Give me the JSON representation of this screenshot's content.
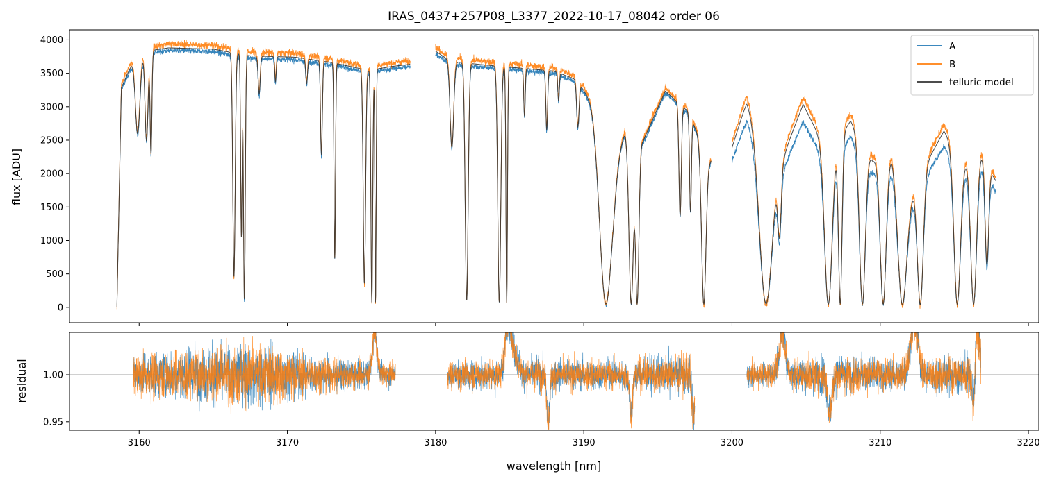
{
  "chart_data": [
    {
      "type": "line",
      "title": "IRAS_0437+257P08_L3377_2022-10-17_08042  order 06",
      "xlabel": "",
      "ylabel": "flux [ADU]",
      "xlim": [
        3155.3,
        3220.7
      ],
      "ylim": [
        -230,
        4150
      ],
      "x_ticks": [
        3160,
        3170,
        3180,
        3190,
        3200,
        3210,
        3220
      ],
      "y_ticks": [
        0,
        500,
        1000,
        1500,
        2000,
        2500,
        3000,
        3500,
        4000
      ],
      "y_tick_labels": [
        "0",
        "500",
        "1000",
        "1500",
        "2000",
        "2500",
        "3000",
        "3500",
        "4000"
      ],
      "legend": {
        "position": "top-right",
        "entries": [
          "A",
          "B",
          "telluric model"
        ]
      },
      "series": [
        {
          "name": "A",
          "color": "#1f77b4",
          "segments": [
            [
              3158.5,
              3178.3
            ],
            [
              3180.0,
              3198.6
            ],
            [
              3200.0,
              3217.8
            ]
          ]
        },
        {
          "name": "B",
          "color": "#ff7f0e",
          "segments": [
            [
              3158.5,
              3178.3
            ],
            [
              3180.0,
              3198.6
            ],
            [
              3200.0,
              3217.8
            ]
          ]
        },
        {
          "name": "telluric model",
          "color": "#333333",
          "segments": [
            [
              3158.5,
              3178.3
            ],
            [
              3180.0,
              3198.6
            ],
            [
              3200.0,
              3217.8
            ]
          ]
        }
      ],
      "continuum_knots": [
        [
          3158.5,
          0
        ],
        [
          3158.8,
          3300
        ],
        [
          3159.5,
          3650
        ],
        [
          3160.5,
          3850
        ],
        [
          3162.0,
          3900
        ],
        [
          3165.0,
          3880
        ],
        [
          3167.5,
          3780
        ],
        [
          3170.5,
          3760
        ],
        [
          3173.0,
          3680
        ],
        [
          3175.5,
          3560
        ],
        [
          3177.0,
          3620
        ],
        [
          3178.2,
          3650
        ],
        [
          3180.0,
          3850
        ],
        [
          3181.0,
          3700
        ],
        [
          3183.0,
          3650
        ],
        [
          3185.5,
          3600
        ],
        [
          3188.0,
          3550
        ],
        [
          3189.5,
          3420
        ],
        [
          3190.5,
          3100
        ],
        [
          3192.0,
          2200
        ],
        [
          3192.8,
          2650
        ],
        [
          3194.0,
          2500
        ],
        [
          3195.5,
          3250
        ],
        [
          3197.0,
          2950
        ],
        [
          3198.5,
          2200
        ],
        [
          3200.0,
          2400
        ],
        [
          3201.0,
          3100
        ],
        [
          3202.0,
          2800
        ],
        [
          3203.5,
          2300
        ],
        [
          3204.8,
          3050
        ],
        [
          3206.5,
          2300
        ],
        [
          3208.0,
          2800
        ],
        [
          3209.5,
          2200
        ],
        [
          3210.8,
          2300
        ],
        [
          3212.0,
          1700
        ],
        [
          3213.2,
          2200
        ],
        [
          3214.3,
          2650
        ],
        [
          3215.5,
          2200
        ],
        [
          3216.8,
          2300
        ],
        [
          3217.8,
          1900
        ]
      ],
      "absorption_lines": [
        [
          3159.9,
          0.3,
          0.15
        ],
        [
          3160.5,
          0.35,
          0.1
        ],
        [
          3160.8,
          0.4,
          0.06
        ],
        [
          3166.4,
          0.88,
          0.08
        ],
        [
          3166.9,
          0.72,
          0.05
        ],
        [
          3167.1,
          0.97,
          0.06
        ],
        [
          3168.1,
          0.15,
          0.07
        ],
        [
          3169.2,
          0.1,
          0.05
        ],
        [
          3171.3,
          0.1,
          0.06
        ],
        [
          3172.3,
          0.38,
          0.06
        ],
        [
          3173.2,
          0.8,
          0.05
        ],
        [
          3175.2,
          0.9,
          0.08
        ],
        [
          3175.7,
          0.98,
          0.06
        ],
        [
          3175.95,
          0.98,
          0.04
        ],
        [
          3181.1,
          0.35,
          0.12
        ],
        [
          3182.1,
          0.97,
          0.1
        ],
        [
          3184.3,
          0.98,
          0.1
        ],
        [
          3184.8,
          0.98,
          0.05
        ],
        [
          3186.0,
          0.2,
          0.05
        ],
        [
          3187.5,
          0.25,
          0.06
        ],
        [
          3188.3,
          0.12,
          0.05
        ],
        [
          3189.6,
          0.2,
          0.08
        ],
        [
          3191.5,
          0.98,
          0.4
        ],
        [
          3193.2,
          0.98,
          0.15
        ],
        [
          3193.6,
          0.98,
          0.12
        ],
        [
          3196.5,
          0.55,
          0.08
        ],
        [
          3197.2,
          0.5,
          0.06
        ],
        [
          3198.1,
          0.98,
          0.15
        ],
        [
          3202.3,
          0.98,
          0.45
        ],
        [
          3203.2,
          0.5,
          0.12
        ],
        [
          3206.5,
          0.98,
          0.25
        ],
        [
          3207.3,
          0.98,
          0.12
        ],
        [
          3208.8,
          0.98,
          0.2
        ],
        [
          3210.2,
          0.98,
          0.2
        ],
        [
          3211.5,
          0.98,
          0.3
        ],
        [
          3212.7,
          0.98,
          0.2
        ],
        [
          3215.2,
          0.98,
          0.22
        ],
        [
          3216.3,
          0.98,
          0.2
        ],
        [
          3217.2,
          0.7,
          0.12
        ]
      ]
    },
    {
      "type": "line",
      "title": "",
      "xlabel": "wavelength [nm]",
      "ylabel": "residual",
      "xlim": [
        3155.3,
        3220.7
      ],
      "ylim": [
        0.941,
        1.045
      ],
      "x_ticks": [
        3160,
        3170,
        3180,
        3190,
        3200,
        3210,
        3220
      ],
      "x_tick_labels": [
        "3160",
        "3170",
        "3180",
        "3190",
        "3200",
        "3210",
        "3220"
      ],
      "y_ticks": [
        0.95,
        1.0
      ],
      "y_tick_labels": [
        "0.95",
        "1.00"
      ],
      "reference_line": 1.0,
      "series": [
        {
          "name": "A",
          "color": "#1f77b4",
          "segments": [
            [
              3159.6,
              3177.3
            ],
            [
              3180.8,
              3197.5
            ],
            [
              3201.0,
              3216.8
            ]
          ]
        },
        {
          "name": "B",
          "color": "#ff7f0e",
          "segments": [
            [
              3159.6,
              3177.3
            ],
            [
              3180.8,
              3197.5
            ],
            [
              3201.0,
              3216.8
            ]
          ]
        }
      ],
      "noise_profile": [
        [
          3159.6,
          0.018
        ],
        [
          3164.0,
          0.024
        ],
        [
          3168.0,
          0.028
        ],
        [
          3172.0,
          0.016
        ],
        [
          3177.3,
          0.01
        ],
        [
          3180.8,
          0.012
        ],
        [
          3186.0,
          0.014
        ],
        [
          3192.0,
          0.013
        ],
        [
          3197.5,
          0.018
        ],
        [
          3201.0,
          0.01
        ],
        [
          3206.0,
          0.016
        ],
        [
          3212.0,
          0.014
        ],
        [
          3216.8,
          0.018
        ]
      ],
      "features": [
        [
          3175.9,
          0.045,
          0.15
        ],
        [
          3184.9,
          0.05,
          0.2
        ],
        [
          3185.3,
          0.02,
          0.3
        ],
        [
          3187.6,
          -0.05,
          0.1
        ],
        [
          3193.2,
          -0.04,
          0.1
        ],
        [
          3197.4,
          -0.05,
          0.1
        ],
        [
          3203.4,
          0.045,
          0.2
        ],
        [
          3206.6,
          -0.04,
          0.15
        ],
        [
          3212.3,
          0.055,
          0.25
        ],
        [
          3216.5,
          0.05,
          0.2
        ],
        [
          3216.3,
          -0.06,
          0.1
        ]
      ]
    }
  ]
}
